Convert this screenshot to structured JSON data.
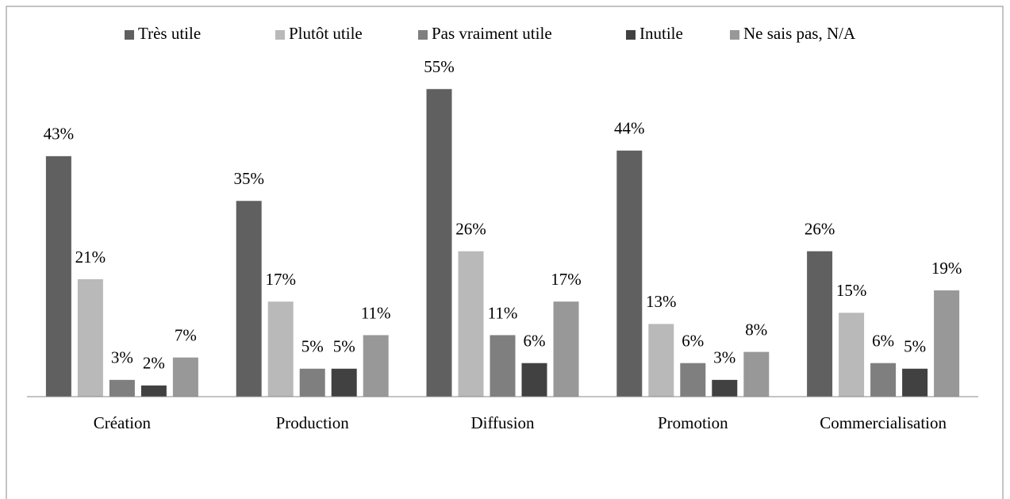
{
  "chart_data": {
    "type": "bar",
    "categories": [
      "Création",
      "Production",
      "Diffusion",
      "Promotion",
      "Commercialisation"
    ],
    "series": [
      {
        "name": "Très utile",
        "color": "#606060",
        "values": [
          43,
          35,
          55,
          44,
          26
        ],
        "value_labels": [
          "43%",
          "35%",
          "55%",
          "44%",
          "26%"
        ]
      },
      {
        "name": "Plutôt utile",
        "color": "#b9b9b9",
        "values": [
          21,
          17,
          26,
          13,
          15
        ],
        "value_labels": [
          "21%",
          "17%",
          "26%",
          "13%",
          "15%"
        ]
      },
      {
        "name": "Pas vraiment utile",
        "color": "#7f7f7f",
        "values": [
          3,
          5,
          11,
          6,
          6
        ],
        "value_labels": [
          "3%",
          "5%",
          "11%",
          "6%",
          "6%"
        ]
      },
      {
        "name": "Inutile",
        "color": "#414141",
        "values": [
          2,
          5,
          6,
          3,
          5
        ],
        "value_labels": [
          "2%",
          "5%",
          "6%",
          "3%",
          "5%"
        ]
      },
      {
        "name": "Ne sais pas, N/A",
        "color": "#989898",
        "values": [
          7,
          11,
          17,
          8,
          19
        ],
        "value_labels": [
          "7%",
          "11%",
          "17%",
          "8%",
          "19%"
        ]
      }
    ],
    "ylim": [
      0,
      60
    ],
    "legend": "top"
  }
}
